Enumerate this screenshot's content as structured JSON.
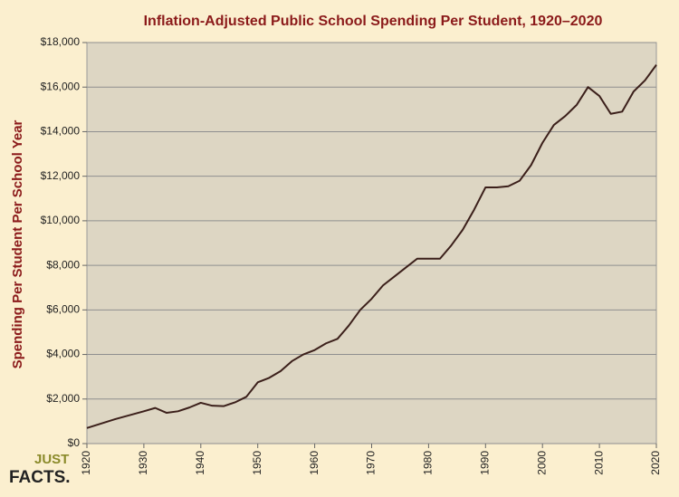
{
  "chart_data": {
    "type": "line",
    "title": "Inflation-Adjusted Public School Spending Per Student, 1920–2020",
    "y_label": "Spending Per Student Per School Year",
    "x": [
      1920,
      1925,
      1930,
      1932,
      1934,
      1936,
      1938,
      1940,
      1942,
      1944,
      1946,
      1948,
      1950,
      1952,
      1954,
      1956,
      1958,
      1960,
      1962,
      1964,
      1966,
      1968,
      1970,
      1972,
      1974,
      1976,
      1978,
      1980,
      1982,
      1984,
      1986,
      1988,
      1990,
      1992,
      1994,
      1996,
      1998,
      2000,
      2002,
      2004,
      2006,
      2008,
      2010,
      2012,
      2014,
      2016,
      2018,
      2020
    ],
    "series": [
      {
        "color": "#3b1f1a",
        "values": [
          700,
          1100,
          1450,
          1600,
          1380,
          1450,
          1620,
          1830,
          1700,
          1680,
          1850,
          2100,
          2750,
          2950,
          3250,
          3700,
          4000,
          4200,
          4500,
          4700,
          5300,
          6000,
          6500,
          7100,
          7500,
          7900,
          8300,
          8300,
          8300,
          8900,
          9600,
          10500,
          11500,
          11500,
          11550,
          11800,
          12500,
          13500,
          14300,
          14700,
          15200,
          16000,
          15600,
          14800,
          14900,
          15800,
          16300,
          17000
        ]
      }
    ],
    "xlim": [
      1920,
      2020
    ],
    "xticks": [
      1920,
      1930,
      1940,
      1950,
      1960,
      1970,
      1980,
      1990,
      2000,
      2010,
      2020
    ],
    "ylim": [
      0,
      18000
    ],
    "yticks": [
      {
        "value": 0,
        "label": "$0"
      },
      {
        "value": 2000,
        "label": "$2,000"
      },
      {
        "value": 4000,
        "label": "$4,000"
      },
      {
        "value": 6000,
        "label": "$6,000"
      },
      {
        "value": 8000,
        "label": "$8,000"
      },
      {
        "value": 10000,
        "label": "$10,000"
      },
      {
        "value": 12000,
        "label": "$12,000"
      },
      {
        "value": 14000,
        "label": "$14,000"
      },
      {
        "value": 16000,
        "label": "$16,000"
      },
      {
        "value": 18000,
        "label": "$18,000"
      }
    ],
    "grid": true
  },
  "logo": {
    "line1": "JUST",
    "line2": "FACTS."
  }
}
